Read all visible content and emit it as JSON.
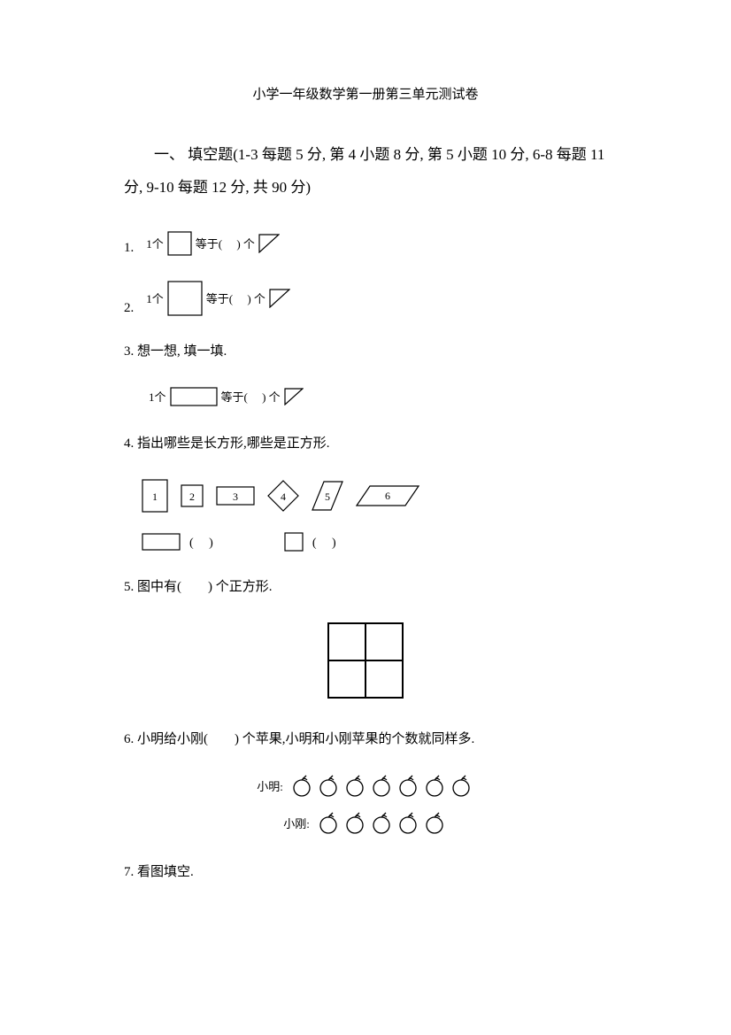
{
  "title": "小学一年级数学第一册第三单元测试卷",
  "intro": "一、 填空题(1-3 每题 5 分, 第 4 小题 8 分, 第 5 小题 10 分, 6-8 每题 11 分, 9-10 每题 12 分, 共 90 分)",
  "q1": {
    "num": "1.",
    "prefix": "1个",
    "mid": "等于(　 ) 个"
  },
  "q2": {
    "num": "2.",
    "prefix": "1个",
    "mid": "等于(　 ) 个"
  },
  "q3": {
    "num": "3.",
    "text": "想一想, 填一填.",
    "prefix": "1个",
    "mid": "等于(　 ) 个"
  },
  "q4": {
    "num": "4.",
    "text": "指出哪些是长方形,哪些是正方形.",
    "labels": [
      "1",
      "2",
      "3",
      "4",
      "5",
      "6"
    ],
    "blank": "(　  )"
  },
  "q5": {
    "num": "5.",
    "text": "图中有(　　) 个正方形."
  },
  "q6": {
    "num": "6.",
    "text": "小明给小刚(　　) 个苹果,小明和小刚苹果的个数就同样多.",
    "row1_label": "小明:",
    "row1_count": 7,
    "row2_label": "小刚:",
    "row2_count": 5
  },
  "q7": {
    "num": "7.",
    "text": "看图填空."
  },
  "colors": {
    "stroke": "#000000",
    "bg": "#ffffff"
  }
}
